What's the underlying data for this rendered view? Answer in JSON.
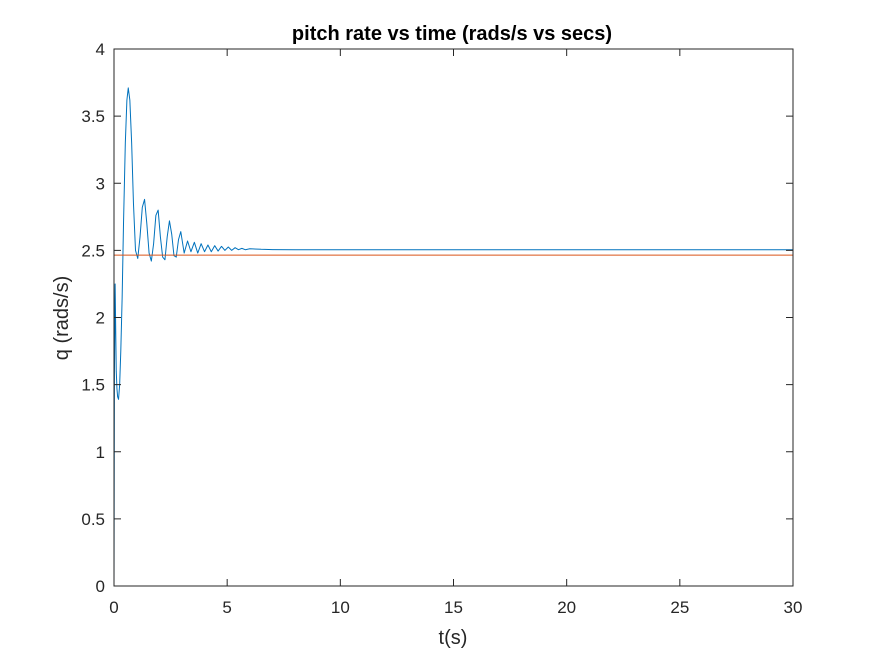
{
  "chart_data": {
    "type": "line",
    "title": "pitch rate vs time (rads/s vs secs)",
    "xlabel": "t(s)",
    "ylabel": "q (rads/s)",
    "xlim": [
      0,
      30
    ],
    "ylim": [
      0,
      4
    ],
    "xticks": [
      0,
      5,
      10,
      15,
      20,
      25,
      30
    ],
    "yticks": [
      0,
      0.5,
      1,
      1.5,
      2,
      2.5,
      3,
      3.5,
      4
    ],
    "xtick_labels": [
      "0",
      "5",
      "10",
      "15",
      "20",
      "25",
      "30"
    ],
    "ytick_labels": [
      "0",
      "0.5",
      "1",
      "1.5",
      "2",
      "2.5",
      "3",
      "3.5",
      "4"
    ],
    "grid": false,
    "legend": "none",
    "series": [
      {
        "color": "#0072BD",
        "x": [
          0,
          0.02,
          0.05,
          0.08,
          0.1,
          0.13,
          0.16,
          0.2,
          0.25,
          0.3,
          0.36,
          0.42,
          0.5,
          0.57,
          0.63,
          0.7,
          0.78,
          0.86,
          0.95,
          1.05,
          1.15,
          1.25,
          1.35,
          1.45,
          1.55,
          1.65,
          1.75,
          1.85,
          1.95,
          2.05,
          2.15,
          2.25,
          2.35,
          2.45,
          2.55,
          2.65,
          2.75,
          2.85,
          2.95,
          3.1,
          3.25,
          3.4,
          3.55,
          3.7,
          3.85,
          4.0,
          4.15,
          4.3,
          4.45,
          4.6,
          4.75,
          4.9,
          5.05,
          5.2,
          5.35,
          5.5,
          5.65,
          5.8,
          6.0,
          6.5,
          7,
          8,
          10,
          15,
          20,
          25,
          30
        ],
        "y": [
          0,
          1.6,
          2.25,
          1.85,
          1.6,
          1.47,
          1.41,
          1.39,
          1.5,
          1.75,
          2.15,
          2.7,
          3.3,
          3.62,
          3.71,
          3.62,
          3.3,
          2.85,
          2.5,
          2.44,
          2.6,
          2.82,
          2.88,
          2.7,
          2.48,
          2.42,
          2.55,
          2.76,
          2.8,
          2.6,
          2.45,
          2.43,
          2.6,
          2.72,
          2.62,
          2.46,
          2.45,
          2.58,
          2.64,
          2.48,
          2.57,
          2.49,
          2.56,
          2.48,
          2.55,
          2.49,
          2.54,
          2.49,
          2.535,
          2.495,
          2.53,
          2.5,
          2.525,
          2.5,
          2.52,
          2.505,
          2.515,
          2.505,
          2.512,
          2.508,
          2.506,
          2.505,
          2.505,
          2.505,
          2.505,
          2.505,
          2.505
        ]
      },
      {
        "color": "#D95319",
        "x": [
          0,
          30
        ],
        "y": [
          2.465,
          2.465
        ]
      }
    ]
  }
}
